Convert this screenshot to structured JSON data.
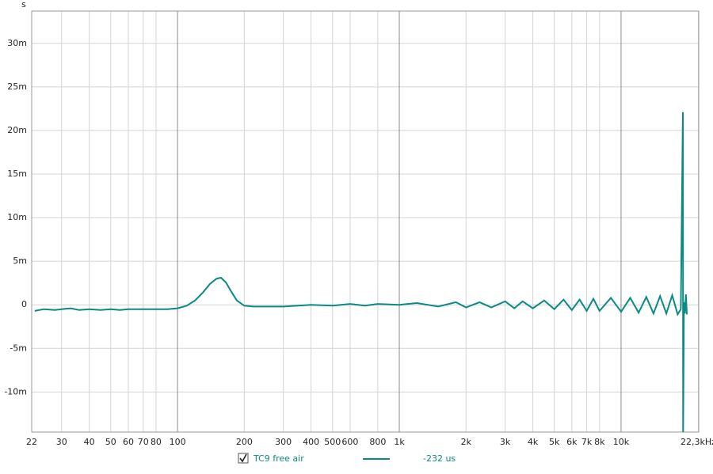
{
  "chart_data": {
    "type": "line",
    "y_label": "s",
    "xscale": "log",
    "grid": true,
    "xlim": [
      22,
      22400
    ],
    "ylim": [
      -0.0146,
      0.0337
    ],
    "xticks": [
      22,
      30,
      40,
      50,
      60,
      70,
      80,
      100,
      200,
      300,
      400,
      500,
      600,
      800,
      {
        "value": 1000,
        "label": "1k"
      },
      {
        "value": 2000,
        "label": "2k"
      },
      {
        "value": 3000,
        "label": "3k"
      },
      {
        "value": 4000,
        "label": "4k"
      },
      {
        "value": 5000,
        "label": "5k"
      },
      {
        "value": 6000,
        "label": "6k"
      },
      {
        "value": 7000,
        "label": "7k"
      },
      {
        "value": 8000,
        "label": "8k"
      },
      {
        "value": 10000,
        "label": "10k"
      },
      {
        "value": 22300,
        "label": "22,3kHz"
      }
    ],
    "yticks": [
      {
        "value": -0.01,
        "label": "-10m"
      },
      {
        "value": -0.005,
        "label": "-5m"
      },
      0,
      {
        "value": 0.005,
        "label": "5m"
      },
      {
        "value": 0.01,
        "label": "10m"
      },
      {
        "value": 0.015,
        "label": "15m"
      },
      {
        "value": 0.02,
        "label": "20m"
      },
      {
        "value": 0.025,
        "label": "25m"
      },
      {
        "value": 0.03,
        "label": "30m"
      }
    ],
    "x": [
      22.7,
      25,
      28,
      30,
      33,
      36,
      40,
      45,
      50,
      55,
      60,
      70,
      80,
      90,
      100,
      110,
      120,
      130,
      140,
      150,
      157,
      165,
      175,
      185,
      200,
      220,
      250,
      300,
      350,
      400,
      500,
      600,
      700,
      800,
      1000,
      1200,
      1500,
      1800,
      2000,
      2300,
      2600,
      3000,
      3300,
      3600,
      4000,
      4500,
      5000,
      5500,
      6000,
      6500,
      7000,
      7500,
      8000,
      9000,
      10000,
      11000,
      12000,
      13000,
      14000,
      15000,
      16000,
      17000,
      18000,
      18600,
      19000,
      19050,
      19200,
      19400,
      19600,
      19800
    ],
    "series": [
      {
        "name": "TC9 free air",
        "color": "#0b8a84",
        "legend_value": "-232 us",
        "values": [
          -0.0007,
          -0.0005,
          -0.0006,
          -0.0005,
          -0.0004,
          -0.0006,
          -0.0005,
          -0.0006,
          -0.0005,
          -0.0006,
          -0.0005,
          -0.0005,
          -0.0005,
          -0.0005,
          -0.0004,
          -0.0001,
          0.0005,
          0.0014,
          0.0024,
          0.003,
          0.0031,
          0.0026,
          0.0015,
          0.0005,
          -0.0001,
          -0.0002,
          -0.0002,
          -0.0002,
          -0.0001,
          0,
          -0.0001,
          0.0001,
          -0.0001,
          0.0001,
          0,
          0.0002,
          -0.0002,
          0.0003,
          -0.0003,
          0.0003,
          -0.0003,
          0.0004,
          -0.0004,
          0.0004,
          -0.0004,
          0.0005,
          -0.0005,
          0.0006,
          -0.0006,
          0.0006,
          -0.0007,
          0.0007,
          -0.0007,
          0.0008,
          -0.0008,
          0.0008,
          -0.0009,
          0.0009,
          -0.001,
          0.001,
          -0.001,
          0.0011,
          -0.0011,
          -0.0005,
          0.0221,
          -0.0146,
          0.0003,
          -0.001,
          0.0012,
          -0.0011
        ]
      }
    ]
  }
}
